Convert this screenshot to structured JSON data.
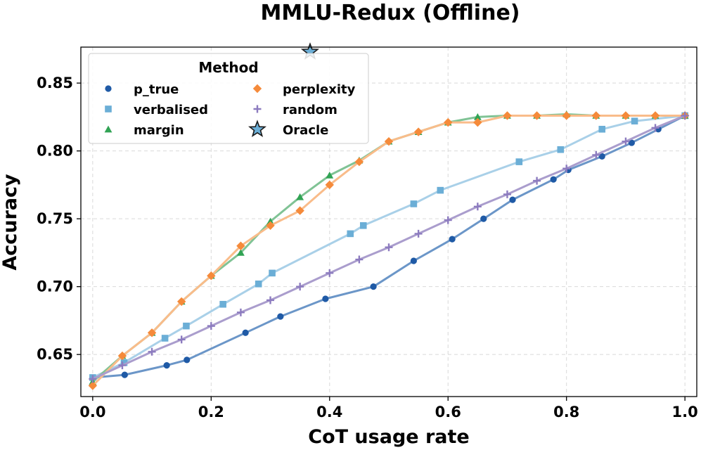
{
  "chart_data": {
    "type": "line",
    "title": "MMLU-Redux (Offline)",
    "xlabel": "CoT usage rate",
    "ylabel": "Accuracy",
    "xlim": [
      -0.02,
      1.02
    ],
    "ylim": [
      0.619,
      0.8765
    ],
    "xticks": [
      0.0,
      0.2,
      0.4,
      0.6,
      0.8,
      1.0
    ],
    "xtick_labels": [
      "0.0",
      "0.2",
      "0.4",
      "0.6",
      "0.8",
      "1.0"
    ],
    "yticks": [
      0.65,
      0.7,
      0.75,
      0.8,
      0.85
    ],
    "ytick_labels": [
      "0.65",
      "0.70",
      "0.75",
      "0.80",
      "0.85"
    ],
    "grid": true,
    "legend": {
      "title": "Method",
      "placement": "top-left",
      "columns": 2
    },
    "series": [
      {
        "name": "p_true",
        "marker": "circle",
        "color": "#1f5aa6",
        "line_color": "#6b96c8",
        "x": [
          0.0,
          0.054,
          0.125,
          0.159,
          0.258,
          0.317,
          0.393,
          0.474,
          0.542,
          0.607,
          0.66,
          0.709,
          0.778,
          0.803,
          0.86,
          0.91,
          0.955,
          1.0
        ],
        "y": [
          0.633,
          0.635,
          0.642,
          0.646,
          0.666,
          0.678,
          0.691,
          0.7,
          0.719,
          0.735,
          0.75,
          0.764,
          0.779,
          0.786,
          0.796,
          0.806,
          0.816,
          0.826
        ]
      },
      {
        "name": "verbalised",
        "marker": "square",
        "color": "#6baed6",
        "line_color": "#a9d0e8",
        "x": [
          0.0,
          0.053,
          0.122,
          0.158,
          0.22,
          0.28,
          0.303,
          0.435,
          0.457,
          0.542,
          0.587,
          0.72,
          0.79,
          0.86,
          0.915,
          1.0
        ],
        "y": [
          0.633,
          0.644,
          0.662,
          0.671,
          0.687,
          0.702,
          0.71,
          0.739,
          0.745,
          0.761,
          0.771,
          0.792,
          0.801,
          0.816,
          0.822,
          0.826
        ]
      },
      {
        "name": "margin",
        "marker": "triangle",
        "color": "#31a354",
        "line_color": "#80c395",
        "x": [
          0.0,
          0.05,
          0.1,
          0.15,
          0.2,
          0.25,
          0.3,
          0.35,
          0.4,
          0.45,
          0.5,
          0.55,
          0.6,
          0.65,
          0.7,
          0.75,
          0.8,
          0.85,
          0.9,
          0.95,
          1.0
        ],
        "y": [
          0.63,
          0.649,
          0.666,
          0.689,
          0.708,
          0.725,
          0.748,
          0.766,
          0.782,
          0.793,
          0.807,
          0.814,
          0.821,
          0.825,
          0.826,
          0.826,
          0.827,
          0.826,
          0.826,
          0.826,
          0.826
        ]
      },
      {
        "name": "perplexity",
        "marker": "diamond",
        "color": "#f58a3a",
        "line_color": "#f9bc8a",
        "x": [
          0.0,
          0.05,
          0.1,
          0.15,
          0.2,
          0.25,
          0.3,
          0.35,
          0.4,
          0.45,
          0.5,
          0.55,
          0.6,
          0.65,
          0.7,
          0.75,
          0.8,
          0.85,
          0.9,
          0.95,
          1.0
        ],
        "y": [
          0.627,
          0.649,
          0.666,
          0.689,
          0.708,
          0.73,
          0.745,
          0.756,
          0.775,
          0.792,
          0.807,
          0.814,
          0.821,
          0.821,
          0.826,
          0.826,
          0.826,
          0.826,
          0.826,
          0.826,
          0.826
        ]
      },
      {
        "name": "random",
        "marker": "plus",
        "color": "#8c7bbf",
        "line_color": "#aa9dcd",
        "x": [
          0.0,
          0.05,
          0.1,
          0.15,
          0.2,
          0.25,
          0.3,
          0.35,
          0.4,
          0.45,
          0.5,
          0.55,
          0.6,
          0.65,
          0.7,
          0.75,
          0.8,
          0.85,
          0.9,
          0.95,
          1.0
        ],
        "y": [
          0.632,
          0.642,
          0.652,
          0.661,
          0.671,
          0.681,
          0.69,
          0.7,
          0.71,
          0.72,
          0.729,
          0.739,
          0.749,
          0.759,
          0.768,
          0.778,
          0.787,
          0.797,
          0.807,
          0.817,
          0.826
        ]
      },
      {
        "name": "Oracle",
        "marker": "star",
        "color": "#6baed6",
        "line_color": null,
        "x": [
          0.367
        ],
        "y": [
          0.873
        ]
      }
    ]
  }
}
